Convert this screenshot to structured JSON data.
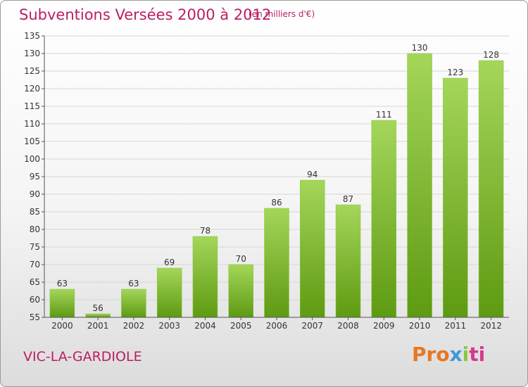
{
  "title": "Subventions Versées 2000 à 2012",
  "subtitle": "(en milliers d'€)",
  "town": "VIC-LA-GARDIOLE",
  "logo": {
    "text": "Proxiti",
    "parts": [
      "Pro",
      "x",
      "i",
      "ti"
    ]
  },
  "colors": {
    "accent": "#bb1d63",
    "bar_light": "#a4d65a",
    "bar_dark": "#5e9a12"
  },
  "chart_data": {
    "type": "bar",
    "categories": [
      "2000",
      "2001",
      "2002",
      "2003",
      "2004",
      "2005",
      "2006",
      "2007",
      "2008",
      "2009",
      "2010",
      "2011",
      "2012"
    ],
    "values": [
      63,
      56,
      63,
      69,
      78,
      70,
      86,
      94,
      87,
      111,
      130,
      123,
      128
    ],
    "ylim": [
      55,
      135
    ],
    "yticks": [
      55,
      60,
      65,
      70,
      75,
      80,
      85,
      90,
      95,
      100,
      105,
      110,
      115,
      120,
      125,
      130,
      135
    ],
    "grid": true,
    "data_labels": true
  }
}
